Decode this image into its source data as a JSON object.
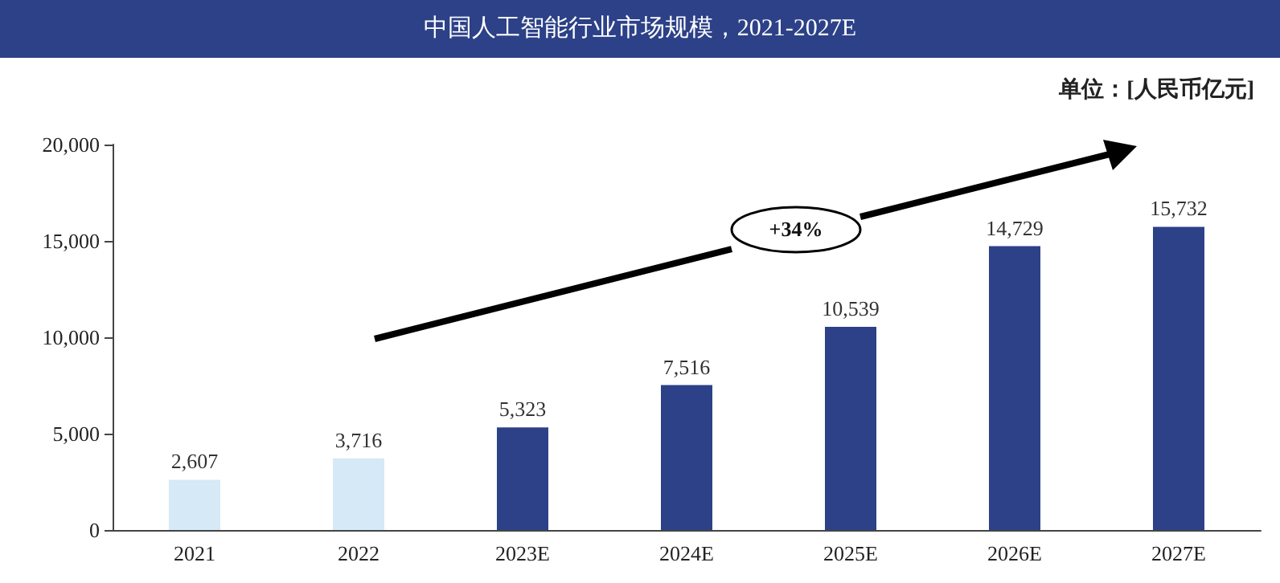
{
  "chart_data": {
    "type": "bar",
    "title": "中国人工智能行业市场规模，2021-2027E",
    "categories": [
      "2021",
      "2022",
      "2023E",
      "2024E",
      "2025E",
      "2026E",
      "2027E"
    ],
    "values": [
      2607,
      3716,
      5323,
      7516,
      10539,
      14729,
      15732
    ],
    "colors": [
      "#d5e9f7",
      "#d5e9f7",
      "#2c4187",
      "#2c4187",
      "#2c4187",
      "#2c4187",
      "#2c4187"
    ],
    "value_labels": [
      "2,607",
      "3,716",
      "5,323",
      "7,516",
      "10,539",
      "14,729",
      "15,732"
    ],
    "ylim": [
      0,
      20000
    ],
    "yticks": [
      0,
      {
        "value": 5000,
        "label": "5,000"
      },
      {
        "value": 10000,
        "label": "10,000"
      },
      {
        "value": 15000,
        "label": "15,000"
      },
      {
        "value": 20000,
        "label": "20,000"
      }
    ],
    "grid": false,
    "annotations": [
      "单位：[人民币亿元]",
      "+34%"
    ]
  }
}
